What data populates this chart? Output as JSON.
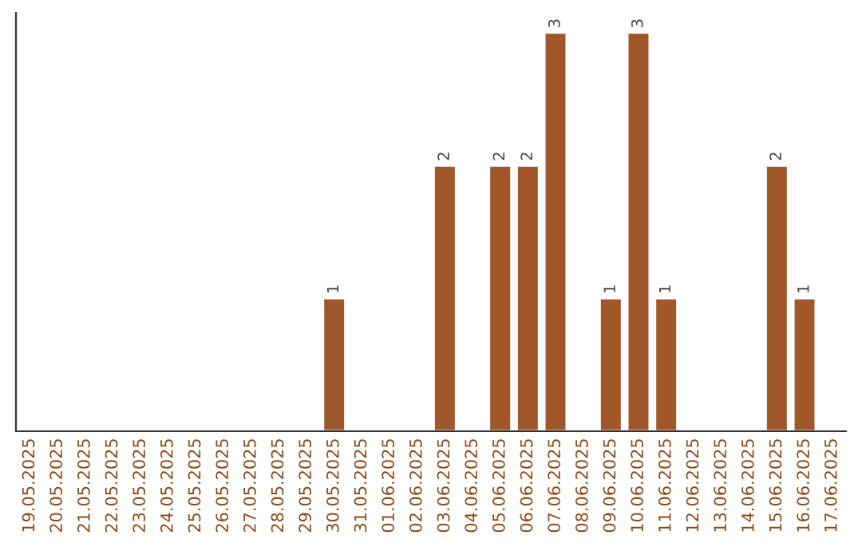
{
  "chart_data": {
    "type": "bar",
    "categories": [
      "19.05.2025",
      "20.05.2025",
      "21.05.2025",
      "22.05.2025",
      "23.05.2025",
      "24.05.2025",
      "25.05.2025",
      "26.05.2025",
      "27.05.2025",
      "28.05.2025",
      "29.05.2025",
      "30.05.2025",
      "31.05.2025",
      "01.06.2025",
      "02.06.2025",
      "03.06.2025",
      "04.06.2025",
      "05.06.2025",
      "06.06.2025",
      "07.06.2025",
      "08.06.2025",
      "09.06.2025",
      "10.06.2025",
      "11.06.2025",
      "12.06.2025",
      "13.06.2025",
      "14.06.2025",
      "15.06.2025",
      "16.06.2025",
      "17.06.2025"
    ],
    "values": [
      null,
      null,
      null,
      null,
      null,
      null,
      null,
      null,
      null,
      null,
      null,
      1,
      null,
      null,
      null,
      2,
      null,
      2,
      2,
      3,
      null,
      1,
      3,
      1,
      null,
      null,
      null,
      2,
      1,
      null
    ],
    "value_labels": [
      null,
      null,
      null,
      null,
      null,
      null,
      null,
      null,
      null,
      null,
      null,
      "1",
      null,
      null,
      null,
      "2",
      null,
      "2",
      "2",
      "3",
      null,
      "1",
      "3",
      "1",
      null,
      null,
      null,
      "2",
      "1",
      null
    ],
    "color": "#a0582a",
    "grid": false,
    "legend": false,
    "tick_labels": "x"
  }
}
